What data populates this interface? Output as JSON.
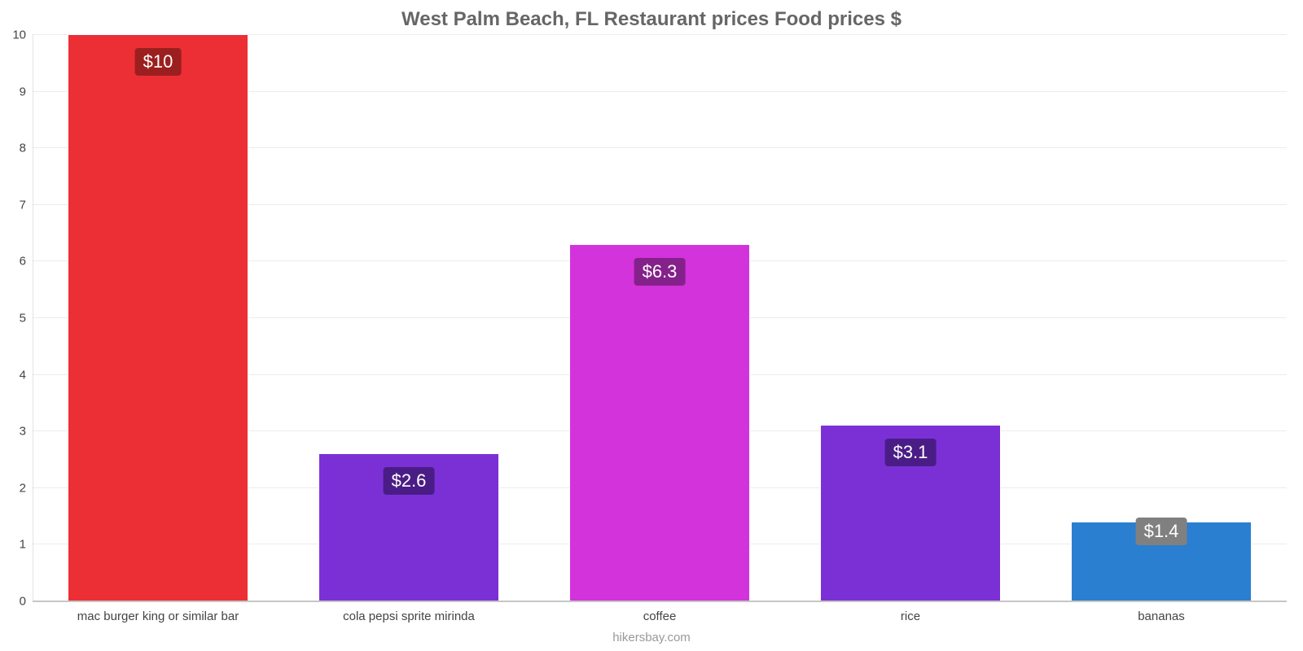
{
  "chart": {
    "type": "bar",
    "title": "West Palm Beach, FL Restaurant prices Food prices $",
    "title_fontsize": 24,
    "title_color": "#666666",
    "credit": "hikersbay.com",
    "credit_color": "#999999",
    "background_color": "#ffffff",
    "axis_color": "#c8c8c8",
    "grid_color": "rgba(180,180,180,0.25)",
    "tick_font_color": "#444444",
    "tick_fontsize": 15,
    "ylim_min": 0,
    "ylim_max": 10,
    "ytick_step": 1,
    "yticks": [
      0,
      1,
      2,
      3,
      4,
      5,
      6,
      7,
      8,
      9,
      10
    ],
    "bar_width": 0.72,
    "value_badge_fontsize": 22,
    "value_badge_text_color": "#ffffff",
    "categories": [
      "mac burger king or similar bar",
      "cola pepsi sprite mirinda",
      "coffee",
      "rice",
      "bananas"
    ],
    "values": [
      10,
      2.6,
      6.3,
      3.1,
      1.4
    ],
    "value_labels": [
      "$10",
      "$2.6",
      "$6.3",
      "$3.1",
      "$1.4"
    ],
    "bar_colors": [
      "#ec2f35",
      "#7b30d6",
      "#d233db",
      "#7b30d6",
      "#2a7fd0"
    ],
    "badge_colors": [
      "#9c1f1f",
      "#4a1d86",
      "#85218a",
      "#4a1d86",
      "#808080"
    ]
  }
}
